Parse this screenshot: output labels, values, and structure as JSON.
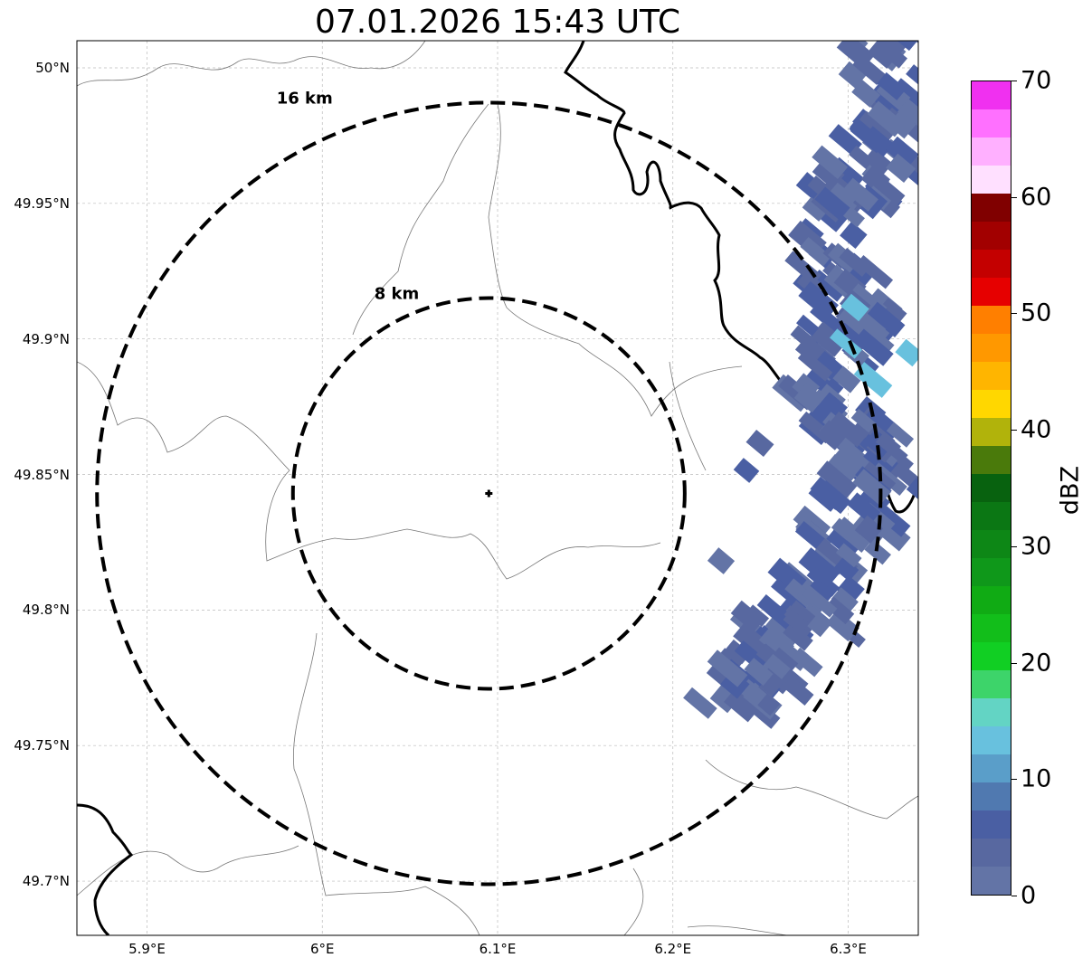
{
  "title": "07.01.2026 15:43 UTC",
  "map": {
    "lat_ticks": [
      "50°N",
      "49.95°N",
      "49.9°N",
      "49.85°N",
      "49.8°N",
      "49.75°N",
      "49.7°N"
    ],
    "lon_ticks": [
      "5.9°E",
      "6°E",
      "6.1°E",
      "6.2°E",
      "6.3°E"
    ],
    "radar_site": {
      "lon": 6.095,
      "lat": 49.843
    },
    "rings": [
      {
        "label": "8 km",
        "radius_km": 8
      },
      {
        "label": "16 km",
        "radius_km": 16
      }
    ],
    "extent": {
      "lon_min": 5.86,
      "lon_max": 6.34,
      "lat_min": 49.68,
      "lat_max": 50.01
    },
    "gridlines": true
  },
  "colorbar": {
    "label": "dBZ",
    "ticks": [
      "0",
      "10",
      "20",
      "30",
      "40",
      "50",
      "60",
      "70"
    ],
    "colors": [
      "#6374a6",
      "#5868a0",
      "#4a5fa3",
      "#5079b0",
      "#5a9ec9",
      "#68c1de",
      "#63d4c4",
      "#3dd46a",
      "#11cf23",
      "#12be1a",
      "#10ab14",
      "#0f981a",
      "#0d8716",
      "#0b7714",
      "#08620f",
      "#4a7a0b",
      "#b1b30b",
      "#ffd700",
      "#ffb500",
      "#ff9800",
      "#ff7f00",
      "#e60000",
      "#c40000",
      "#a20000",
      "#800000",
      "#ffe0ff",
      "#ffb0ff",
      "#ff70ff",
      "#f030f0"
    ]
  }
}
